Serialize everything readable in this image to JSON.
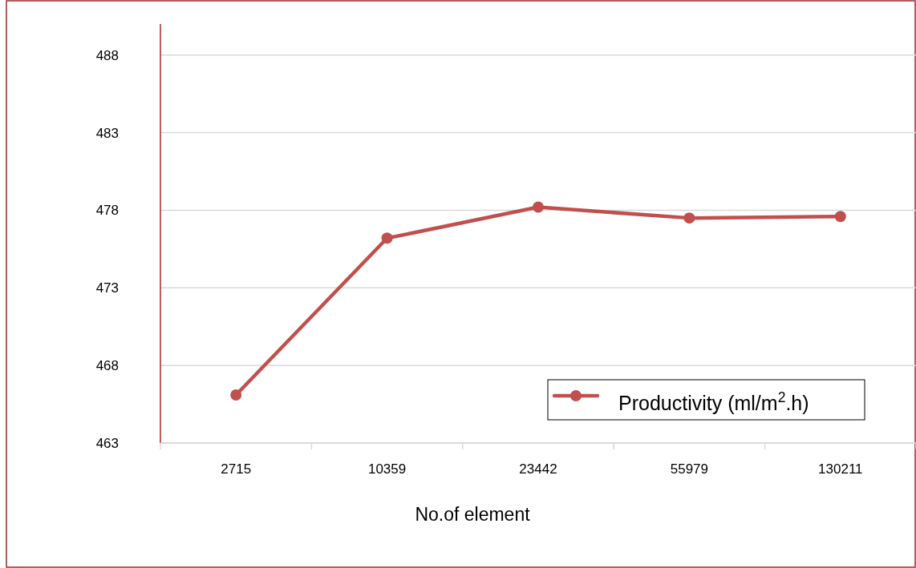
{
  "chart_data": {
    "type": "line",
    "xlabel": "No.of element",
    "categories": [
      "2715",
      "10359",
      "23442",
      "55979",
      "130211"
    ],
    "series": [
      {
        "name": "Productivity (ml/m$^{2}$.h)",
        "color": "#c0504d",
        "values": [
          466.1,
          476.2,
          478.2,
          477.5,
          477.6
        ]
      }
    ],
    "ylim": [
      463,
      490
    ],
    "yticks": [
      463,
      468,
      473,
      478,
      483,
      488
    ],
    "grid": "y",
    "legend": "bottom right",
    "marker": "circle",
    "line_style": "solid"
  }
}
